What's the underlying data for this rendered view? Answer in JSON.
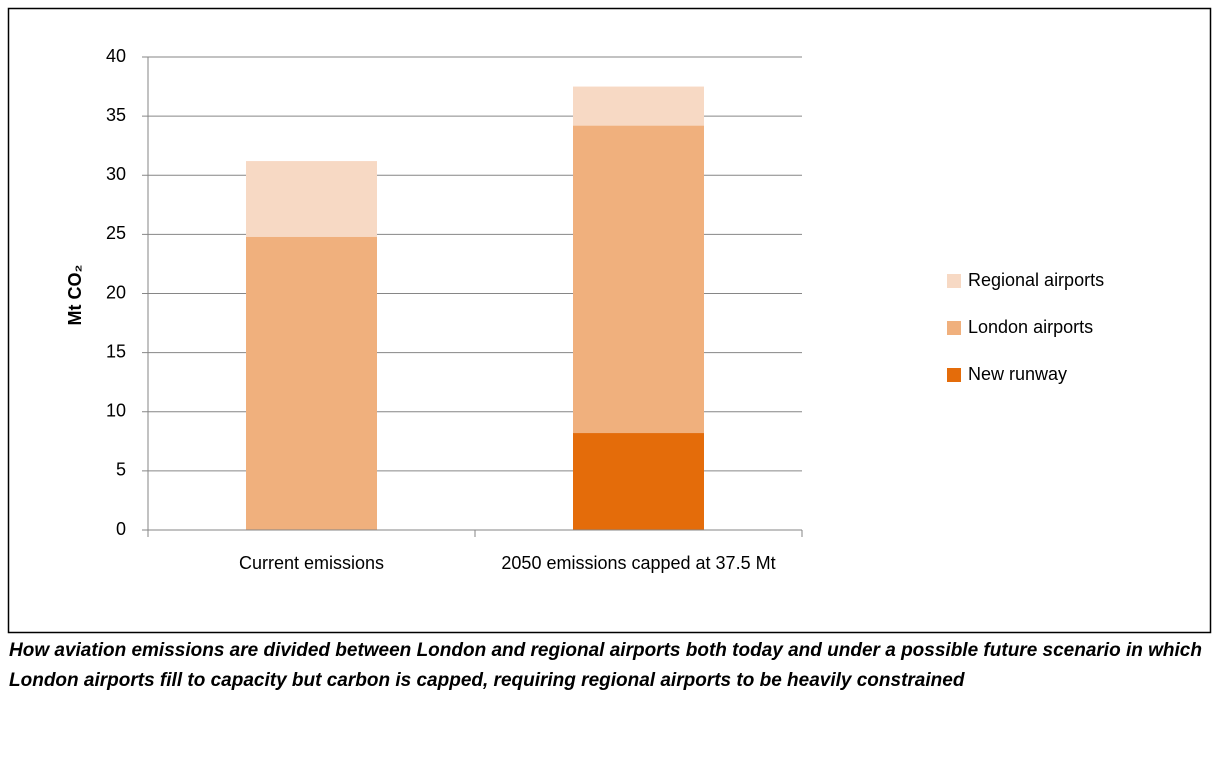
{
  "chart_data": {
    "type": "stacked_bar",
    "y_label": "Mt CO₂",
    "categories": [
      "Current emissions",
      "2050 emissions capped at 37.5 Mt"
    ],
    "series": [
      {
        "name": "New runway",
        "color": "#e46c0a",
        "values": [
          0,
          8.2
        ]
      },
      {
        "name": "London airports",
        "color": "#f0b07d",
        "values": [
          24.8,
          26.0
        ]
      },
      {
        "name": "Regional airports",
        "color": "#f7d9c4",
        "values": [
          6.4,
          3.3
        ]
      }
    ],
    "ylim": [
      0,
      40
    ],
    "yticks": [
      0,
      5,
      10,
      15,
      20,
      25,
      30,
      35,
      40
    ],
    "grid": true,
    "legend": "right",
    "caption": "How aviation emissions are divided between London and regional airports both today and under a possible future scenario in which London airports fill to capacity but carbon is capped, requiring regional airports to be heavily constrained"
  }
}
